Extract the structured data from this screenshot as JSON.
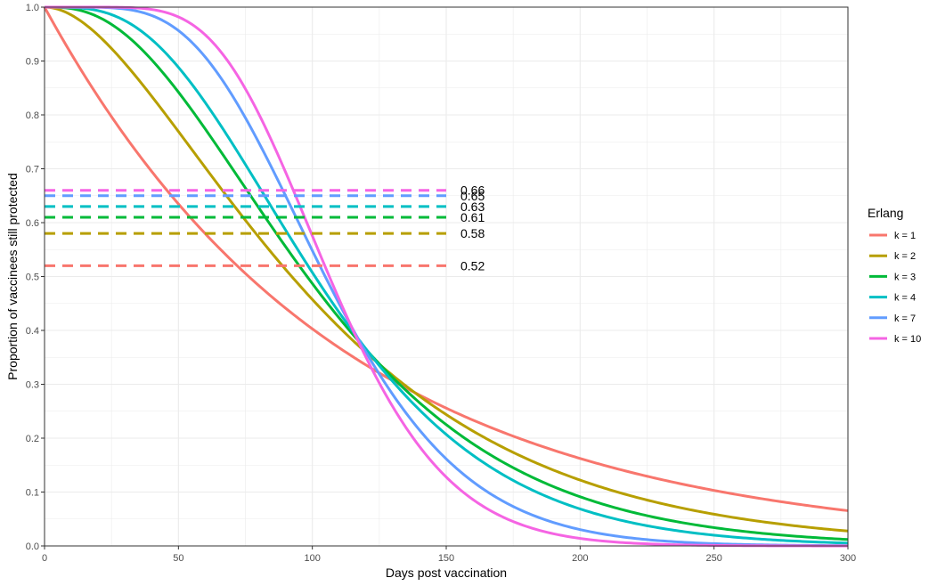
{
  "chart_data": {
    "type": "line",
    "xlabel": "Days post vaccination",
    "ylabel": "Proportion of vaccinees still protected",
    "xlim": [
      0,
      300
    ],
    "ylim": [
      0,
      1
    ],
    "x_ticks": [
      "0",
      "50",
      "100",
      "150",
      "200",
      "250",
      "300"
    ],
    "y_ticks": [
      "0.0",
      "0.1",
      "0.2",
      "0.3",
      "0.4",
      "0.5",
      "0.6",
      "0.7",
      "0.8",
      "0.9",
      "1.0"
    ],
    "grid": true,
    "legend": {
      "title": "Erlang",
      "position": "right"
    },
    "series": [
      {
        "name": "k = 1",
        "k": 1,
        "color": "#F8766D",
        "threshold": 0.52,
        "threshold_label": "0.52"
      },
      {
        "name": "k = 2",
        "k": 2,
        "color": "#B79F00",
        "threshold": 0.58,
        "threshold_label": "0.58"
      },
      {
        "name": "k = 3",
        "k": 3,
        "color": "#00BA38",
        "threshold": 0.61,
        "threshold_label": "0.61"
      },
      {
        "name": "k = 4",
        "k": 4,
        "color": "#00BFC4",
        "threshold": 0.63,
        "threshold_label": "0.63"
      },
      {
        "name": "k = 7",
        "k": 7,
        "color": "#619CFF",
        "threshold": 0.65,
        "threshold_label": "0.65"
      },
      {
        "name": "k = 10",
        "k": 10,
        "color": "#F564E3",
        "threshold": 0.66,
        "threshold_label": "0.66"
      }
    ],
    "curve_model": {
      "family": "erlang_survival",
      "mean_days": 110
    },
    "threshold_segment_x": [
      0,
      150
    ]
  }
}
